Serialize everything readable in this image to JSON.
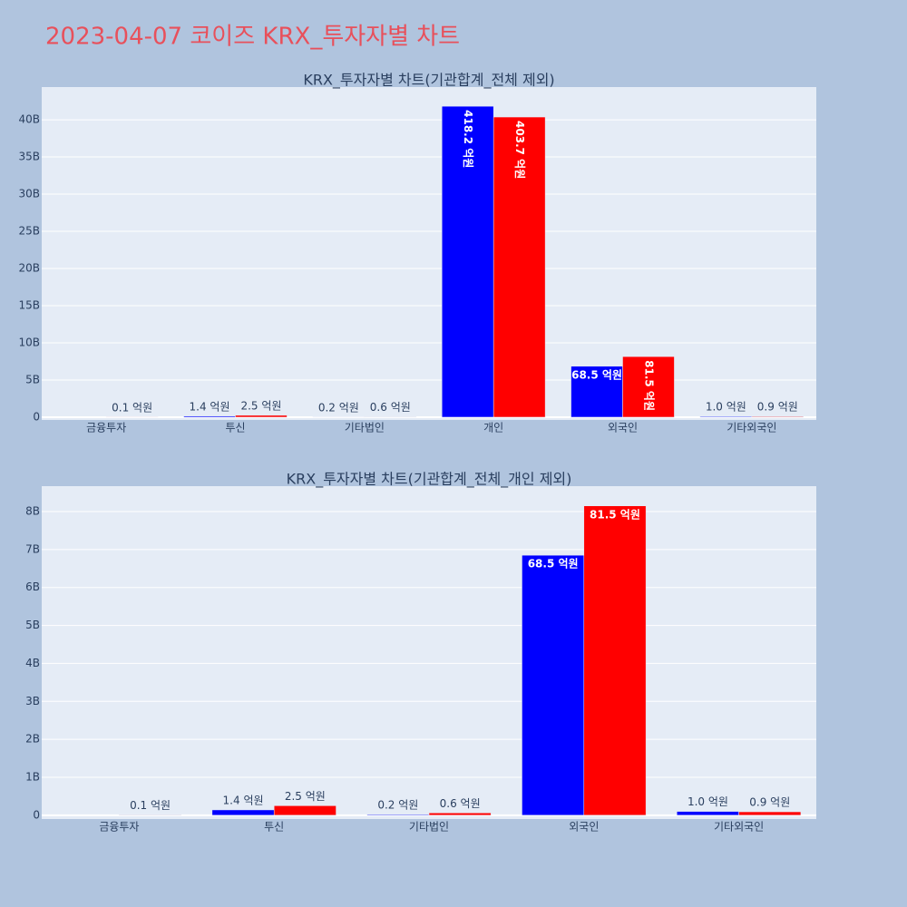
{
  "title": "2023-04-07 코이즈 KRX_투자자별 차트",
  "chart_data": [
    {
      "type": "bar",
      "title": "KRX_투자자별 차트(기관합계_전체 제외)",
      "categories": [
        "금융투자",
        "투신",
        "기타법인",
        "개인",
        "외국인",
        "기타외국인"
      ],
      "series": [
        {
          "color": "#0000ff",
          "values": [
            null,
            0.14,
            0.02,
            41.82,
            6.85,
            0.1
          ],
          "value_labels": [
            null,
            "1.4 억원",
            "0.2 억원",
            "418.2 억원",
            "68.5 억원",
            "1.0 억원"
          ]
        },
        {
          "color": "#ff0000",
          "values": [
            0.01,
            0.25,
            0.06,
            40.37,
            8.15,
            0.09
          ],
          "value_labels": [
            "0.1 억원",
            "2.5 억원",
            "0.6 억원",
            "403.7 억원",
            "81.5 억원",
            "0.9 억원"
          ]
        }
      ],
      "ylim": [
        -0.37,
        44.4
      ],
      "yticks": [
        0,
        {
          "value": 5,
          "label": "5B"
        },
        {
          "value": 10,
          "label": "10B"
        },
        {
          "value": 15,
          "label": "15B"
        },
        {
          "value": 20,
          "label": "20B"
        },
        {
          "value": 25,
          "label": "25B"
        },
        {
          "value": 30,
          "label": "30B"
        },
        {
          "value": 35,
          "label": "35B"
        },
        {
          "value": 40,
          "label": "40B"
        }
      ],
      "grid": true
    },
    {
      "type": "bar",
      "title": "KRX_투자자별 차트(기관합계_전체_개인 제외)",
      "categories": [
        "금융투자",
        "투신",
        "기타법인",
        "외국인",
        "기타외국인"
      ],
      "series": [
        {
          "color": "#0000ff",
          "values": [
            null,
            0.14,
            0.02,
            6.85,
            0.1
          ],
          "value_labels": [
            null,
            "1.4 억원",
            "0.2 억원",
            "68.5 억원",
            "1.0 억원"
          ]
        },
        {
          "color": "#ff0000",
          "values": [
            0.01,
            0.25,
            0.06,
            8.15,
            0.09
          ],
          "value_labels": [
            "0.1 억원",
            "2.5 억원",
            "0.6 억원",
            "81.5 억원",
            "0.9 억원"
          ]
        }
      ],
      "ylim": [
        -0.1,
        8.67
      ],
      "yticks": [
        0,
        {
          "value": 1,
          "label": "1B"
        },
        {
          "value": 2,
          "label": "2B"
        },
        {
          "value": 3,
          "label": "3B"
        },
        {
          "value": 4,
          "label": "4B"
        },
        {
          "value": 5,
          "label": "5B"
        },
        {
          "value": 6,
          "label": "6B"
        },
        {
          "value": 7,
          "label": "7B"
        },
        {
          "value": 8,
          "label": "8B"
        }
      ],
      "grid": true
    }
  ]
}
